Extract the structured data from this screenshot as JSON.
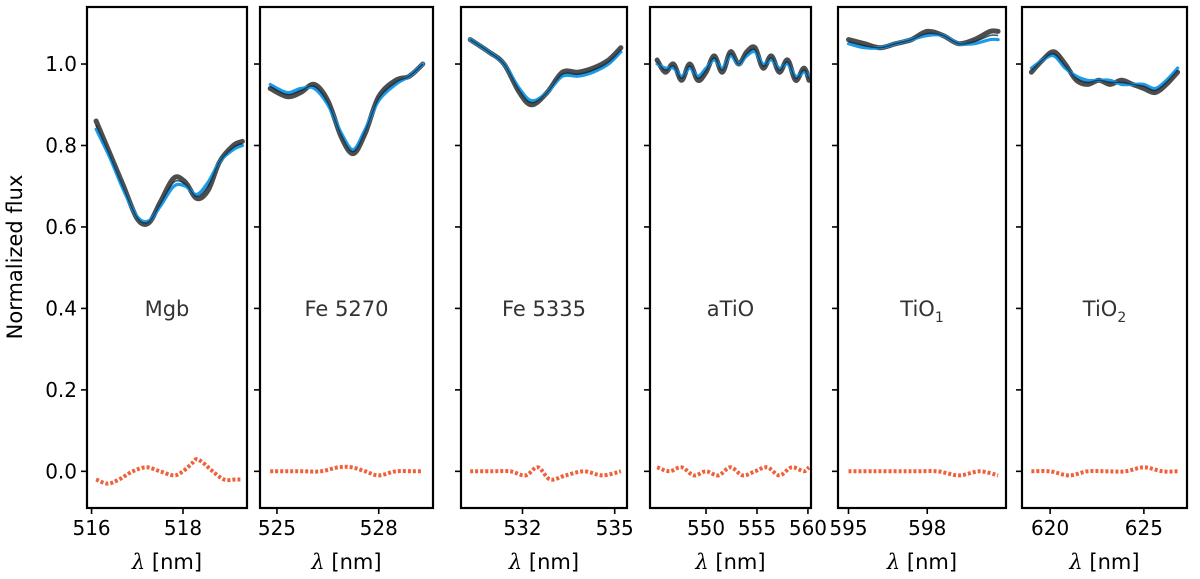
{
  "chart_data": {
    "type": "line",
    "ylabel": "Normalized flux",
    "xlabel": "λ [nm]",
    "xlabel_symbol": "λ",
    "xlabel_unit": "[nm]",
    "ylim": [
      -0.09,
      1.14
    ],
    "yticks": [
      0.0,
      0.2,
      0.4,
      0.6,
      0.8,
      1.0
    ],
    "ytick_labels": [
      "0.0",
      "0.2",
      "0.4",
      "0.6",
      "0.8",
      "1.0"
    ],
    "series_colors": {
      "observed": "#4d4d4d",
      "model": "#1e9be6",
      "residual": "#f0603a",
      "overlap": "#0a2a44"
    },
    "panels": [
      {
        "label": "Mgb",
        "label_sub": "",
        "xlim": [
          515.9,
          519.4
        ],
        "xticks": [
          516,
          518
        ],
        "xtick_labels": [
          "516",
          "518"
        ],
        "observed": [
          [
            516.1,
            0.86
          ],
          [
            516.4,
            0.78
          ],
          [
            516.7,
            0.7
          ],
          [
            517.0,
            0.62
          ],
          [
            517.25,
            0.61
          ],
          [
            517.5,
            0.66
          ],
          [
            517.8,
            0.72
          ],
          [
            518.05,
            0.71
          ],
          [
            518.3,
            0.67
          ],
          [
            518.55,
            0.69
          ],
          [
            518.8,
            0.76
          ],
          [
            519.1,
            0.8
          ],
          [
            519.3,
            0.81
          ]
        ],
        "model": [
          [
            516.1,
            0.84
          ],
          [
            516.4,
            0.77
          ],
          [
            516.7,
            0.69
          ],
          [
            517.0,
            0.625
          ],
          [
            517.25,
            0.615
          ],
          [
            517.5,
            0.65
          ],
          [
            517.8,
            0.7
          ],
          [
            518.05,
            0.7
          ],
          [
            518.3,
            0.68
          ],
          [
            518.55,
            0.71
          ],
          [
            518.8,
            0.76
          ],
          [
            519.1,
            0.79
          ],
          [
            519.3,
            0.8
          ]
        ],
        "residual": [
          [
            516.1,
            -0.02
          ],
          [
            516.35,
            -0.03
          ],
          [
            516.6,
            -0.02
          ],
          [
            516.9,
            0.0
          ],
          [
            517.2,
            0.01
          ],
          [
            517.5,
            0.0
          ],
          [
            517.8,
            -0.01
          ],
          [
            518.0,
            0.0
          ],
          [
            518.2,
            0.02
          ],
          [
            518.3,
            0.03
          ],
          [
            518.45,
            0.02
          ],
          [
            518.65,
            0.0
          ],
          [
            518.9,
            -0.02
          ],
          [
            519.15,
            -0.02
          ],
          [
            519.3,
            -0.02
          ]
        ]
      },
      {
        "label": "Fe 5270",
        "label_sub": "",
        "xlim": [
          524.5,
          529.6
        ],
        "xticks": [
          525,
          528
        ],
        "xtick_labels": [
          "525",
          "528"
        ],
        "observed": [
          [
            524.8,
            0.94
          ],
          [
            525.3,
            0.92
          ],
          [
            525.7,
            0.93
          ],
          [
            526.1,
            0.95
          ],
          [
            526.5,
            0.91
          ],
          [
            526.9,
            0.82
          ],
          [
            527.25,
            0.78
          ],
          [
            527.6,
            0.83
          ],
          [
            528.0,
            0.92
          ],
          [
            528.5,
            0.96
          ],
          [
            528.9,
            0.97
          ],
          [
            529.3,
            1.0
          ]
        ],
        "model": [
          [
            524.8,
            0.95
          ],
          [
            525.3,
            0.93
          ],
          [
            525.7,
            0.94
          ],
          [
            526.1,
            0.94
          ],
          [
            526.5,
            0.9
          ],
          [
            526.9,
            0.83
          ],
          [
            527.25,
            0.79
          ],
          [
            527.6,
            0.84
          ],
          [
            528.0,
            0.91
          ],
          [
            528.5,
            0.95
          ],
          [
            528.9,
            0.97
          ],
          [
            529.3,
            1.0
          ]
        ],
        "residual": [
          [
            524.8,
            0.0
          ],
          [
            525.3,
            0.0
          ],
          [
            525.8,
            0.0
          ],
          [
            526.3,
            0.0
          ],
          [
            526.8,
            0.01
          ],
          [
            527.2,
            0.01
          ],
          [
            527.6,
            0.0
          ],
          [
            528.0,
            -0.01
          ],
          [
            528.5,
            0.0
          ],
          [
            529.0,
            0.0
          ],
          [
            529.3,
            0.0
          ]
        ]
      },
      {
        "label": "Fe 5335",
        "label_sub": "",
        "xlim": [
          530.0,
          535.4
        ],
        "xticks": [
          532,
          535
        ],
        "xtick_labels": [
          "532",
          "535"
        ],
        "observed": [
          [
            530.3,
            1.06
          ],
          [
            530.9,
            1.03
          ],
          [
            531.4,
            1.0
          ],
          [
            531.9,
            0.93
          ],
          [
            532.3,
            0.9
          ],
          [
            532.8,
            0.93
          ],
          [
            533.3,
            0.98
          ],
          [
            533.8,
            0.98
          ],
          [
            534.3,
            0.99
          ],
          [
            534.8,
            1.01
          ],
          [
            535.2,
            1.04
          ]
        ],
        "model": [
          [
            530.3,
            1.06
          ],
          [
            530.9,
            1.03
          ],
          [
            531.4,
            1.0
          ],
          [
            531.9,
            0.94
          ],
          [
            532.3,
            0.91
          ],
          [
            532.8,
            0.93
          ],
          [
            533.3,
            0.97
          ],
          [
            533.8,
            0.97
          ],
          [
            534.3,
            0.98
          ],
          [
            534.8,
            1.0
          ],
          [
            535.2,
            1.03
          ]
        ],
        "residual": [
          [
            530.3,
            0.0
          ],
          [
            531.0,
            0.0
          ],
          [
            531.6,
            0.0
          ],
          [
            532.1,
            -0.01
          ],
          [
            532.5,
            0.01
          ],
          [
            532.9,
            -0.02
          ],
          [
            533.4,
            -0.01
          ],
          [
            534.0,
            0.0
          ],
          [
            534.6,
            -0.01
          ],
          [
            535.2,
            0.0
          ]
        ]
      },
      {
        "label": "aTiO",
        "label_sub": "",
        "xlim": [
          544.5,
          560.3
        ],
        "xticks": [
          550,
          555,
          560
        ],
        "xtick_labels": [
          "550",
          "555",
          "560"
        ],
        "observed": [
          [
            545.2,
            1.01
          ],
          [
            546.0,
            0.98
          ],
          [
            546.8,
            1.0
          ],
          [
            547.6,
            0.96
          ],
          [
            548.4,
            1.0
          ],
          [
            549.2,
            0.96
          ],
          [
            550.0,
            0.98
          ],
          [
            550.8,
            1.02
          ],
          [
            551.6,
            0.98
          ],
          [
            552.4,
            1.03
          ],
          [
            553.2,
            1.0
          ],
          [
            554.0,
            1.03
          ],
          [
            554.8,
            1.04
          ],
          [
            555.6,
            0.99
          ],
          [
            556.4,
            1.02
          ],
          [
            557.2,
            0.98
          ],
          [
            558.0,
            1.01
          ],
          [
            558.8,
            0.96
          ],
          [
            559.6,
            0.99
          ],
          [
            560.1,
            0.96
          ]
        ],
        "model": [
          [
            545.2,
            1.0
          ],
          [
            546.0,
            0.99
          ],
          [
            546.8,
            0.99
          ],
          [
            547.6,
            0.97
          ],
          [
            548.4,
            0.99
          ],
          [
            549.2,
            0.97
          ],
          [
            550.0,
            0.99
          ],
          [
            550.8,
            1.01
          ],
          [
            551.6,
            0.99
          ],
          [
            552.4,
            1.02
          ],
          [
            553.2,
            1.0
          ],
          [
            554.0,
            1.02
          ],
          [
            554.8,
            1.03
          ],
          [
            555.6,
            1.0
          ],
          [
            556.4,
            1.01
          ],
          [
            557.2,
            0.99
          ],
          [
            558.0,
            1.0
          ],
          [
            558.8,
            0.97
          ],
          [
            559.6,
            0.98
          ],
          [
            560.1,
            0.97
          ]
        ],
        "residual": [
          [
            545.2,
            0.01
          ],
          [
            546.4,
            0.0
          ],
          [
            547.6,
            0.01
          ],
          [
            548.8,
            -0.01
          ],
          [
            550.0,
            0.0
          ],
          [
            551.2,
            -0.01
          ],
          [
            552.4,
            0.01
          ],
          [
            553.6,
            -0.01
          ],
          [
            554.8,
            0.0
          ],
          [
            556.0,
            0.01
          ],
          [
            557.2,
            -0.01
          ],
          [
            558.4,
            0.01
          ],
          [
            559.6,
            0.0
          ],
          [
            560.1,
            0.01
          ]
        ]
      },
      {
        "label": "TiO",
        "label_sub": "1",
        "xlim": [
          594.6,
          601.0
        ],
        "xticks": [
          595,
          598
        ],
        "xtick_labels": [
          "595",
          "598"
        ],
        "observed": [
          [
            595.0,
            1.06
          ],
          [
            595.6,
            1.05
          ],
          [
            596.2,
            1.04
          ],
          [
            596.8,
            1.05
          ],
          [
            597.4,
            1.06
          ],
          [
            598.0,
            1.08
          ],
          [
            598.6,
            1.07
          ],
          [
            599.2,
            1.05
          ],
          [
            599.8,
            1.06
          ],
          [
            600.4,
            1.08
          ],
          [
            600.7,
            1.08
          ]
        ],
        "model": [
          [
            595.0,
            1.05
          ],
          [
            595.6,
            1.04
          ],
          [
            596.2,
            1.04
          ],
          [
            596.8,
            1.05
          ],
          [
            597.4,
            1.06
          ],
          [
            598.0,
            1.07
          ],
          [
            598.6,
            1.07
          ],
          [
            599.2,
            1.05
          ],
          [
            599.8,
            1.05
          ],
          [
            600.4,
            1.06
          ],
          [
            600.7,
            1.06
          ]
        ],
        "residual": [
          [
            595.0,
            0.0
          ],
          [
            596.0,
            0.0
          ],
          [
            597.0,
            0.0
          ],
          [
            597.6,
            0.0
          ],
          [
            598.4,
            0.0
          ],
          [
            599.2,
            -0.01
          ],
          [
            600.0,
            0.0
          ],
          [
            600.7,
            -0.01
          ]
        ]
      },
      {
        "label": "TiO",
        "label_sub": "2",
        "xlim": [
          618.5,
          627.3
        ],
        "xticks": [
          620,
          625
        ],
        "xtick_labels": [
          "620",
          "625"
        ],
        "observed": [
          [
            619.0,
            0.98
          ],
          [
            619.6,
            1.01
          ],
          [
            620.2,
            1.03
          ],
          [
            620.8,
            1.0
          ],
          [
            621.4,
            0.96
          ],
          [
            622.0,
            0.95
          ],
          [
            622.6,
            0.96
          ],
          [
            623.2,
            0.95
          ],
          [
            623.8,
            0.96
          ],
          [
            624.4,
            0.95
          ],
          [
            625.0,
            0.94
          ],
          [
            625.6,
            0.93
          ],
          [
            626.2,
            0.95
          ],
          [
            626.8,
            0.98
          ]
        ],
        "model": [
          [
            619.0,
            0.99
          ],
          [
            619.6,
            1.01
          ],
          [
            620.2,
            1.02
          ],
          [
            620.8,
            0.99
          ],
          [
            621.4,
            0.97
          ],
          [
            622.0,
            0.96
          ],
          [
            622.6,
            0.96
          ],
          [
            623.2,
            0.96
          ],
          [
            623.8,
            0.95
          ],
          [
            624.4,
            0.95
          ],
          [
            625.0,
            0.95
          ],
          [
            625.6,
            0.94
          ],
          [
            626.2,
            0.96
          ],
          [
            626.8,
            0.99
          ]
        ],
        "residual": [
          [
            619.0,
            0.0
          ],
          [
            620.0,
            0.0
          ],
          [
            621.0,
            -0.01
          ],
          [
            622.0,
            0.0
          ],
          [
            623.0,
            0.0
          ],
          [
            624.0,
            0.0
          ],
          [
            625.0,
            0.01
          ],
          [
            626.0,
            0.0
          ],
          [
            626.8,
            0.0
          ]
        ]
      }
    ]
  }
}
